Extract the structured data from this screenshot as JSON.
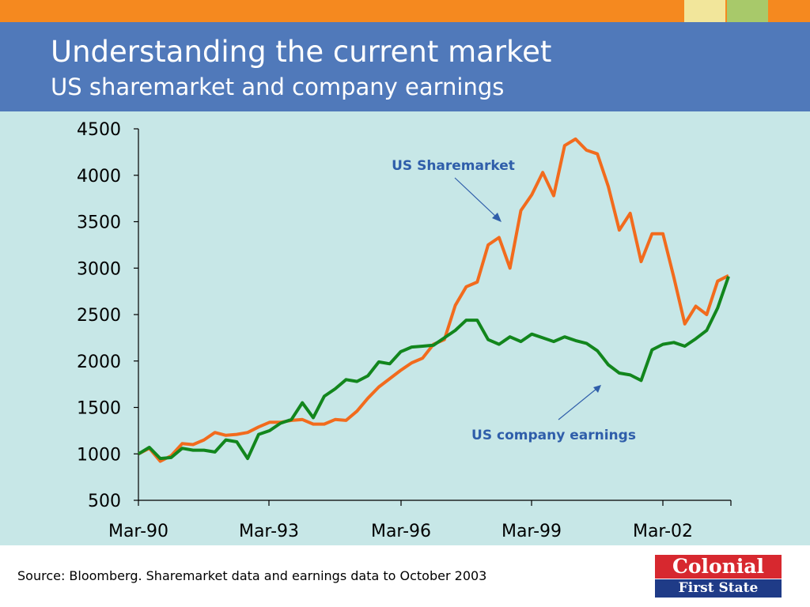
{
  "title": "Understanding the current market",
  "subtitle": "US sharemarket and company earnings",
  "source": "Source: Bloomberg. Sharemarket data and earnings data to October 2003",
  "logo": {
    "line1": "Colonial",
    "line2": "First State"
  },
  "colors": {
    "top_bar": "#f5891f",
    "header": "#5079ba",
    "plot_background": "#c7e7e7",
    "annotation_text": "#2f5eaa"
  },
  "chart_data": {
    "type": "line",
    "title": "",
    "xlabel": "",
    "ylabel": "",
    "ylim": [
      500,
      4500
    ],
    "yticks": [
      500,
      1000,
      1500,
      2000,
      2500,
      3000,
      3500,
      4000,
      4500
    ],
    "xticks": [
      "Mar-90",
      "Mar-93",
      "Mar-96",
      "Mar-99",
      "Mar-02"
    ],
    "x_period": "quarterly, Mar-90 to Sep-03",
    "grid": false,
    "annotations": [
      "US Sharemarket",
      "US company earnings"
    ],
    "series": [
      {
        "name": "US Sharemarket",
        "color": "#f26b1d",
        "values": [
          1000,
          1060,
          920,
          980,
          1110,
          1100,
          1150,
          1230,
          1200,
          1210,
          1230,
          1290,
          1340,
          1340,
          1360,
          1370,
          1320,
          1320,
          1370,
          1360,
          1460,
          1600,
          1720,
          1810,
          1900,
          1980,
          2030,
          2180,
          2230,
          2600,
          2800,
          2850,
          3250,
          3330,
          3000,
          3620,
          3790,
          4030,
          3780,
          4320,
          4390,
          4270,
          4230,
          3880,
          3410,
          3590,
          3070,
          3370,
          3370,
          2900,
          2400,
          2590,
          2500,
          2860,
          2920
        ]
      },
      {
        "name": "US company earnings",
        "color": "#12861d",
        "values": [
          1000,
          1070,
          950,
          960,
          1060,
          1040,
          1040,
          1020,
          1150,
          1130,
          950,
          1210,
          1250,
          1330,
          1370,
          1550,
          1390,
          1620,
          1700,
          1800,
          1780,
          1840,
          1990,
          1970,
          2100,
          2150,
          2160,
          2170,
          2250,
          2330,
          2440,
          2440,
          2230,
          2180,
          2260,
          2210,
          2290,
          2250,
          2210,
          2260,
          2220,
          2190,
          2110,
          1960,
          1870,
          1850,
          1790,
          2120,
          2180,
          2200,
          2160,
          2240,
          2330,
          2570,
          2910
        ]
      }
    ]
  }
}
